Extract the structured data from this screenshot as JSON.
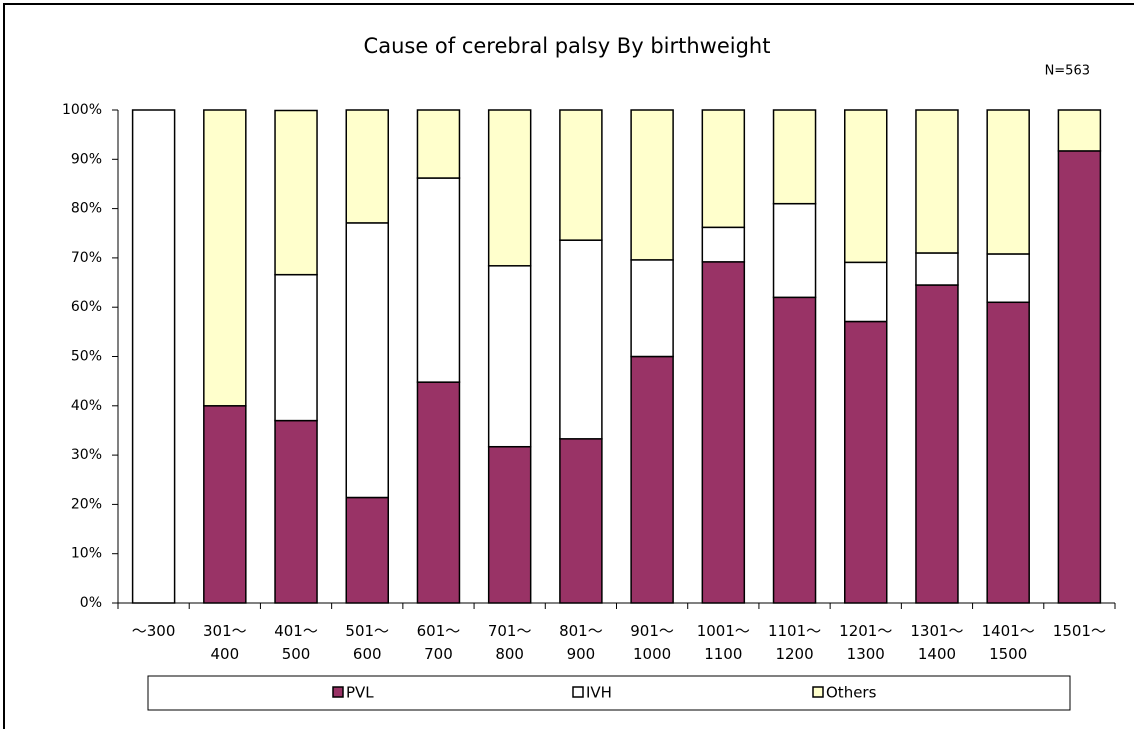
{
  "chart_data": {
    "type": "stacked_bar",
    "title": "Cause of cerebral palsy By birthweight",
    "annotation": "N=563",
    "categories": [
      "～300",
      "301～\n400",
      "401～\n500",
      "501～\n600",
      "601～\n700",
      "701～\n800",
      "801～\n900",
      "901～\n1000",
      "1001～\n1100",
      "1101～\n1200",
      "1201～\n1300",
      "1301～\n1400",
      "1401～\n1500",
      "1501～"
    ],
    "series": [
      {
        "name": "PVL",
        "color": "#993366",
        "values": [
          0,
          40,
          37,
          21.4,
          44.8,
          31.7,
          33.3,
          50,
          69.2,
          62,
          57.1,
          64.5,
          61,
          91.7
        ]
      },
      {
        "name": "IVH",
        "color": "#ffffff",
        "values": [
          100,
          0,
          29.6,
          55.7,
          41.4,
          36.7,
          40.3,
          19.6,
          7,
          19,
          12,
          6.5,
          9.8,
          0
        ]
      },
      {
        "name": "Others",
        "color": "#ffffcc",
        "values": [
          0,
          60,
          33.3,
          22.9,
          13.8,
          31.6,
          26.4,
          30.4,
          23.8,
          19,
          30.9,
          29,
          29.2,
          8.3
        ]
      }
    ],
    "ylim": [
      0,
      100
    ],
    "yticks": [
      {
        "value": 0,
        "label": "0%"
      },
      {
        "value": 10,
        "label": "10%"
      },
      {
        "value": 20,
        "label": "20%"
      },
      {
        "value": 30,
        "label": "30%"
      },
      {
        "value": 40,
        "label": "40%"
      },
      {
        "value": 50,
        "label": "50%"
      },
      {
        "value": 60,
        "label": "60%"
      },
      {
        "value": 70,
        "label": "70%"
      },
      {
        "value": 80,
        "label": "80%"
      },
      {
        "value": 90,
        "label": "90%"
      },
      {
        "value": 100,
        "label": "100%"
      }
    ],
    "legend": "bottom"
  }
}
